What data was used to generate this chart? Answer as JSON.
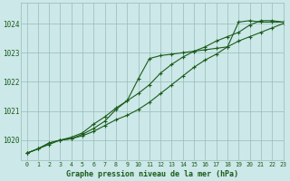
{
  "title": "Graphe pression niveau de la mer (hPa)",
  "bg_color": "#cce8e8",
  "grid_color": "#99bbbb",
  "line_color": "#1a5c1a",
  "xlim": [
    -0.5,
    23
  ],
  "ylim": [
    1019.3,
    1024.7
  ],
  "yticks": [
    1020,
    1021,
    1022,
    1023,
    1024
  ],
  "xticks": [
    0,
    1,
    2,
    3,
    4,
    5,
    6,
    7,
    8,
    9,
    10,
    11,
    12,
    13,
    14,
    15,
    16,
    17,
    18,
    19,
    20,
    21,
    22,
    23
  ],
  "series1": [
    1019.55,
    1019.7,
    1019.9,
    1020.0,
    1020.05,
    1020.15,
    1020.3,
    1020.5,
    1020.7,
    1020.85,
    1021.05,
    1021.3,
    1021.6,
    1021.9,
    1022.2,
    1022.5,
    1022.75,
    1022.95,
    1023.2,
    1023.4,
    1023.55,
    1023.7,
    1023.85,
    1024.0
  ],
  "series2": [
    1019.55,
    1019.7,
    1019.85,
    1020.0,
    1020.1,
    1020.25,
    1020.55,
    1020.8,
    1021.1,
    1021.35,
    1021.6,
    1021.9,
    1022.3,
    1022.6,
    1022.85,
    1023.05,
    1023.2,
    1023.4,
    1023.55,
    1023.7,
    1023.95,
    1024.1,
    1024.1,
    1024.05
  ],
  "series3": [
    1019.55,
    1019.7,
    1019.9,
    1020.0,
    1020.05,
    1020.2,
    1020.4,
    1020.65,
    1021.05,
    1021.35,
    1022.1,
    1022.8,
    1022.9,
    1022.95,
    1023.0,
    1023.05,
    1023.1,
    1023.15,
    1023.2,
    1024.05,
    1024.1,
    1024.05,
    1024.05,
    1024.05
  ]
}
